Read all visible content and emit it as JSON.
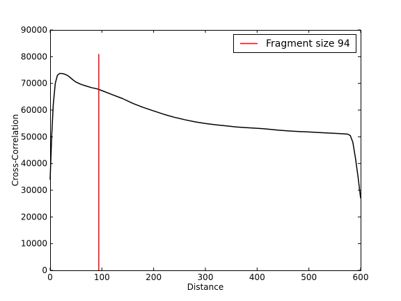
{
  "chart_data": {
    "type": "line",
    "xlabel": "Distance",
    "ylabel": "Cross-Correlation",
    "xlim": [
      0,
      600
    ],
    "ylim": [
      0,
      90000
    ],
    "xticks": [
      0,
      100,
      200,
      300,
      400,
      500,
      600
    ],
    "yticks": [
      0,
      10000,
      20000,
      30000,
      40000,
      50000,
      60000,
      70000,
      80000,
      90000
    ],
    "grid": false,
    "legend_position": "top-right",
    "series": [
      {
        "color": "#000000",
        "x": [
          0,
          3,
          6,
          10,
          14,
          18,
          22,
          26,
          30,
          35,
          40,
          45,
          50,
          60,
          70,
          80,
          90,
          100,
          120,
          140,
          160,
          180,
          200,
          220,
          240,
          260,
          280,
          300,
          320,
          340,
          360,
          380,
          400,
          420,
          440,
          460,
          480,
          500,
          520,
          540,
          560,
          575,
          580,
          585,
          590,
          595,
          600
        ],
        "y": [
          34000,
          50000,
          62000,
          70000,
          73000,
          73700,
          73700,
          73600,
          73300,
          72800,
          72000,
          71200,
          70500,
          69600,
          69000,
          68400,
          68000,
          67300,
          65800,
          64300,
          62500,
          61000,
          59700,
          58400,
          57300,
          56400,
          55600,
          55000,
          54500,
          54100,
          53700,
          53400,
          53200,
          52900,
          52500,
          52200,
          52000,
          51800,
          51600,
          51400,
          51200,
          51000,
          50500,
          48000,
          42000,
          35000,
          27000
        ]
      }
    ],
    "markers": [
      {
        "type": "vline",
        "x": 94,
        "y_range": [
          0,
          81000
        ],
        "color": "#ff0000",
        "label": "Fragment size 94"
      }
    ]
  }
}
